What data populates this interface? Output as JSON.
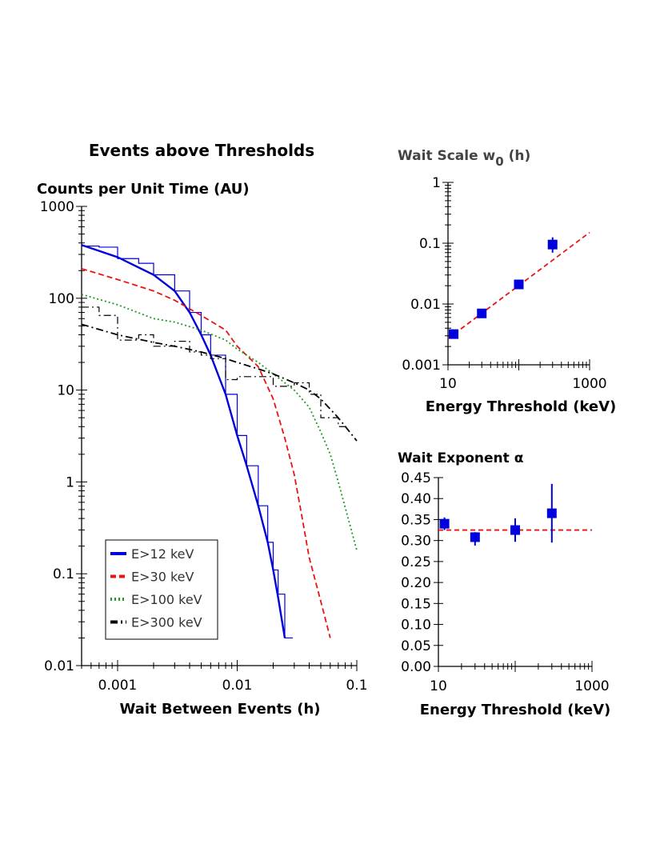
{
  "chart_data": [
    {
      "type": "line",
      "title": "Events above Thresholds",
      "ylabel": "Counts per Unit Time (AU)",
      "xlabel": "Wait Between Events (h)",
      "xscale": "log",
      "yscale": "log",
      "xlim": [
        0.0005,
        0.1
      ],
      "ylim": [
        0.01,
        1000
      ],
      "x_ticks": [
        0.001,
        0.01,
        0.1
      ],
      "x_tick_labels": [
        "0.001",
        "0.01",
        "0.1"
      ],
      "y_ticks": [
        0.01,
        0.1,
        1,
        10,
        100,
        1000
      ],
      "y_tick_labels": [
        "0.01",
        "0.1",
        "1",
        "10",
        "100",
        "1000"
      ],
      "legend_position": "bottom-left",
      "grid": false,
      "series": [
        {
          "name": "E>12 keV",
          "color": "#0000dd",
          "style": "solid",
          "x": [
            0.0005,
            0.001,
            0.002,
            0.003,
            0.004,
            0.005,
            0.006,
            0.008,
            0.01,
            0.012,
            0.015,
            0.018,
            0.02,
            0.022,
            0.025
          ],
          "y": [
            380,
            280,
            180,
            120,
            70,
            40,
            24,
            9,
            3.2,
            1.5,
            0.55,
            0.22,
            0.11,
            0.055,
            0.02
          ],
          "hist_x": [
            0.0005,
            0.0007,
            0.001,
            0.0015,
            0.002,
            0.003,
            0.004,
            0.005,
            0.006,
            0.008,
            0.01,
            0.012,
            0.015,
            0.018,
            0.02,
            0.022,
            0.025
          ],
          "hist_y": [
            370,
            360,
            270,
            240,
            180,
            120,
            70,
            40,
            24,
            9,
            3.2,
            1.5,
            0.55,
            0.22,
            0.11,
            0.06,
            0.02
          ]
        },
        {
          "name": "E>30 keV",
          "color": "#ee1111",
          "style": "dashed",
          "x": [
            0.0005,
            0.001,
            0.002,
            0.003,
            0.005,
            0.008,
            0.01,
            0.015,
            0.02,
            0.025,
            0.03,
            0.035,
            0.04,
            0.05,
            0.06
          ],
          "y": [
            210,
            160,
            120,
            95,
            65,
            45,
            30,
            18,
            8,
            3,
            1.2,
            0.4,
            0.15,
            0.05,
            0.02
          ]
        },
        {
          "name": "E>100 keV",
          "color": "#229922",
          "style": "dotted",
          "x": [
            0.0005,
            0.001,
            0.002,
            0.003,
            0.005,
            0.008,
            0.01,
            0.015,
            0.02,
            0.03,
            0.04,
            0.05,
            0.06,
            0.07,
            0.1
          ],
          "y": [
            110,
            85,
            60,
            55,
            45,
            35,
            28,
            20,
            15,
            10,
            6.5,
            3.5,
            2,
            1,
            0.18
          ]
        },
        {
          "name": "E>300 keV",
          "color": "#000000",
          "style": "dashdot",
          "x": [
            0.0005,
            0.001,
            0.002,
            0.003,
            0.005,
            0.008,
            0.01,
            0.015,
            0.02,
            0.03,
            0.04,
            0.05,
            0.07,
            0.1
          ],
          "y": [
            52,
            40,
            33,
            30,
            26,
            22,
            20,
            17,
            15,
            12,
            10,
            8,
            5,
            2.8
          ],
          "hist_x": [
            0.0005,
            0.0007,
            0.001,
            0.0015,
            0.002,
            0.003,
            0.004,
            0.005,
            0.006,
            0.008,
            0.01,
            0.015,
            0.02,
            0.03,
            0.04,
            0.05,
            0.07
          ],
          "hist_y": [
            80,
            65,
            35,
            40,
            30,
            34,
            26,
            24,
            22,
            13,
            14,
            14,
            11,
            12,
            9,
            5,
            4
          ]
        }
      ]
    },
    {
      "type": "scatter",
      "title": "Wait Scale w",
      "title_sub": "0",
      "title_suffix": " (h)",
      "xlabel": "Energy Threshold (keV)",
      "ylabel": "",
      "xscale": "log",
      "yscale": "log",
      "xlim": [
        10,
        1000
      ],
      "ylim": [
        0.001,
        1
      ],
      "x_ticks": [
        10,
        1000
      ],
      "x_tick_labels": [
        "10",
        "1000"
      ],
      "y_ticks": [
        0.001,
        0.01,
        0.1,
        1
      ],
      "y_tick_labels": [
        "0.001",
        "0.01",
        "0.1",
        "1"
      ],
      "points": {
        "x": [
          12,
          30,
          100,
          300
        ],
        "y": [
          0.0032,
          0.007,
          0.021,
          0.095
        ],
        "err_low": [
          0.0003,
          0.0006,
          0.002,
          0.025
        ],
        "err_high": [
          0.0003,
          0.0006,
          0.002,
          0.03
        ],
        "color": "#0000dd"
      },
      "fit": {
        "x": [
          10,
          1000
        ],
        "y": [
          0.0027,
          0.15
        ],
        "color": "#ee1111",
        "style": "dashed"
      }
    },
    {
      "type": "scatter",
      "title": "Wait Exponent α",
      "xlabel": "Energy Threshold (keV)",
      "ylabel": "",
      "xscale": "log",
      "yscale": "linear",
      "xlim": [
        10,
        1000
      ],
      "ylim": [
        0,
        0.45
      ],
      "x_ticks": [
        10,
        1000
      ],
      "x_tick_labels": [
        "10",
        "1000"
      ],
      "y_ticks": [
        0,
        0.05,
        0.1,
        0.15,
        0.2,
        0.25,
        0.3,
        0.35,
        0.4,
        0.45
      ],
      "y_tick_labels": [
        "0.00",
        "0.05",
        "0.10",
        "0.15",
        "0.20",
        "0.25",
        "0.30",
        "0.35",
        "0.40",
        "0.45"
      ],
      "points": {
        "x": [
          12,
          30,
          100,
          300
        ],
        "y": [
          0.34,
          0.308,
          0.325,
          0.365
        ],
        "err_low": [
          0.015,
          0.02,
          0.028,
          0.07
        ],
        "err_high": [
          0.015,
          0.012,
          0.028,
          0.07
        ],
        "color": "#0000dd"
      },
      "fit": {
        "x": [
          10,
          1000
        ],
        "y": [
          0.325,
          0.325
        ],
        "color": "#ee1111",
        "style": "dashed"
      }
    }
  ]
}
